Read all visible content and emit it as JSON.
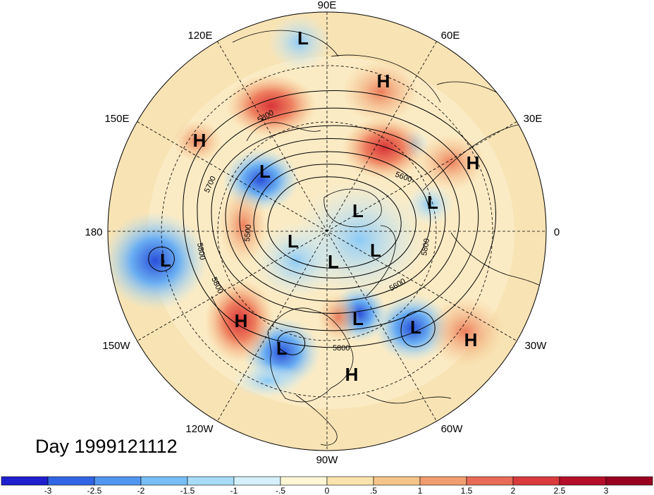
{
  "title": "Day 1999121112",
  "longitude_labels": [
    "90E",
    "60E",
    "30E",
    "0",
    "30W",
    "60W",
    "90W",
    "120W",
    "150W",
    "180",
    "150E",
    "120E"
  ],
  "contour_labels": [
    "5800",
    "5700",
    "5500",
    "5800",
    "5800",
    "5600",
    "5600",
    "5800",
    "5800"
  ],
  "pressure_centers": [
    "L",
    "H",
    "H",
    "L",
    "H",
    "L",
    "L",
    "L",
    "L",
    "L",
    "H",
    "L",
    "H",
    "L",
    "H",
    "L",
    "L"
  ],
  "colorbar": {
    "tick_labels": [
      "-3",
      "-2.5",
      "-2",
      "-1.5",
      "-1",
      "-.5",
      "0",
      ".5",
      "1",
      "1.5",
      "2",
      "2.5",
      "3"
    ],
    "colors": [
      "#1f1fcf",
      "#3264e6",
      "#5096f0",
      "#78bef6",
      "#a6dcf8",
      "#d4f0fb",
      "#fdf7d6",
      "#fbe3ae",
      "#f6c488",
      "#f09e6e",
      "#e86b58",
      "#d93a3c",
      "#b50e28",
      "#99001f"
    ]
  },
  "map_colors": {
    "ocean_base": "#f8e6b8",
    "land_line": "#000000",
    "graticule": "#000000"
  }
}
